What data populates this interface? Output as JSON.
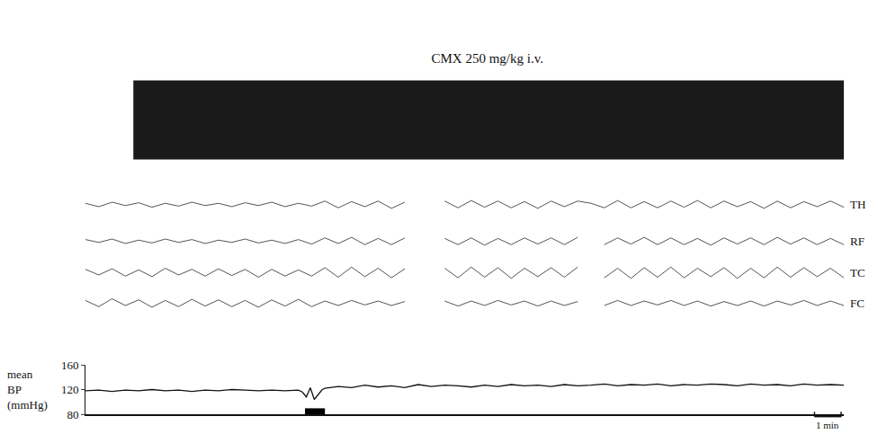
{
  "chart_data": {
    "type": "line",
    "title": "CMX 250 mg/kg i.v.",
    "xlim": [
      0,
      28.5
    ],
    "tick_labels": "y",
    "grid": false,
    "band": {
      "x": [
        1.8,
        28.5
      ],
      "upper": [
        1,
        1
      ],
      "lower": [
        -1,
        -1
      ],
      "ylim": [
        -1.1,
        1.1
      ],
      "color": "#1a1a1a"
    },
    "eeg": {
      "x": [
        0,
        0.5,
        1,
        1.5,
        2,
        2.5,
        3,
        3.5,
        4,
        4.5,
        5,
        5.5,
        6,
        6.5,
        7,
        7.5,
        8,
        8.5,
        9,
        9.5,
        10,
        10.5,
        11,
        11.5,
        12,
        12.5,
        13,
        13.5,
        14,
        14.5,
        15,
        15.5,
        16,
        16.5,
        17,
        17.5,
        18,
        18.5,
        19,
        19.5,
        20,
        20.5,
        21,
        21.5,
        22,
        22.5,
        23,
        23.5,
        24,
        24.5,
        25,
        25.5,
        26,
        26.5,
        27,
        27.5,
        28,
        28.5
      ],
      "ylim": [
        -1,
        1
      ],
      "series": [
        {
          "name": "TH",
          "color": "#555555",
          "values": [
            0.1,
            -0.2,
            0.2,
            -0.1,
            0.15,
            -0.25,
            0.1,
            -0.15,
            0.2,
            -0.1,
            0.1,
            -0.2,
            0.15,
            -0.1,
            0.2,
            -0.2,
            0.1,
            -0.15,
            0.3,
            -0.3,
            0.25,
            -0.2,
            0.3,
            -0.35,
            0.2,
            null,
            null,
            0.3,
            -0.3,
            0.35,
            -0.25,
            0.3,
            -0.3,
            0.25,
            -0.35,
            0.3,
            -0.2,
            0.3,
            0.1,
            -0.3,
            0.35,
            -0.3,
            0.25,
            -0.3,
            0.3,
            -0.25,
            0.35,
            -0.3,
            0.3,
            -0.2,
            0.25,
            -0.35,
            0.3,
            -0.3,
            0.25,
            -0.2,
            0.3,
            -0.25
          ]
        },
        {
          "name": "RF",
          "color": "#555555",
          "values": [
            0.15,
            -0.1,
            0.2,
            -0.2,
            0.1,
            -0.15,
            0.2,
            -0.1,
            0.15,
            -0.2,
            0.1,
            -0.1,
            0.2,
            -0.15,
            0.1,
            -0.2,
            0.15,
            -0.25,
            0.3,
            -0.2,
            0.35,
            -0.3,
            0.25,
            -0.3,
            0.3,
            null,
            null,
            0.25,
            -0.3,
            0.3,
            -0.35,
            0.25,
            -0.3,
            0.3,
            -0.25,
            0.3,
            -0.3,
            0.35,
            null,
            -0.3,
            0.3,
            -0.25,
            0.35,
            -0.3,
            0.3,
            -0.3,
            0.25,
            -0.35,
            0.3,
            -0.25,
            0.3,
            -0.3,
            0.35,
            -0.25,
            0.3,
            -0.3,
            0.25,
            -0.3
          ]
        },
        {
          "name": "TC",
          "color": "#555555",
          "values": [
            0.3,
            -0.2,
            0.35,
            -0.3,
            0.25,
            -0.35,
            0.4,
            -0.2,
            0.3,
            -0.3,
            0.35,
            -0.25,
            0.3,
            -0.4,
            0.3,
            -0.3,
            0.25,
            -0.3,
            0.45,
            -0.4,
            0.5,
            -0.35,
            0.4,
            -0.45,
            0.35,
            null,
            null,
            0.4,
            -0.45,
            0.5,
            -0.4,
            0.45,
            -0.5,
            0.4,
            -0.35,
            0.45,
            -0.4,
            0.5,
            null,
            -0.45,
            0.4,
            -0.5,
            0.45,
            -0.4,
            0.5,
            -0.45,
            0.4,
            -0.35,
            0.45,
            -0.5,
            0.4,
            -0.45,
            0.5,
            -0.4,
            0.45,
            -0.35,
            0.4,
            -0.45
          ]
        },
        {
          "name": "FC",
          "color": "#555555",
          "values": [
            0.25,
            -0.3,
            0.4,
            -0.2,
            0.3,
            -0.35,
            0.25,
            -0.3,
            0.35,
            -0.25,
            0.3,
            -0.3,
            0.25,
            -0.35,
            0.3,
            -0.25,
            0.35,
            -0.3,
            0.2,
            -0.2,
            0.25,
            -0.15,
            0.2,
            -0.2,
            0.15,
            null,
            null,
            0.2,
            -0.25,
            0.2,
            -0.2,
            0.25,
            -0.15,
            0.2,
            -0.25,
            0.2,
            -0.2,
            0.15,
            null,
            -0.2,
            0.25,
            -0.2,
            0.2,
            -0.15,
            0.25,
            -0.2,
            0.2,
            -0.25,
            0.15,
            -0.2,
            0.2,
            -0.25,
            0.2,
            -0.15,
            0.25,
            -0.2,
            0.2,
            -0.2
          ]
        }
      ]
    },
    "bp": {
      "ylabel": [
        "mean",
        "BP",
        "(mmHg)"
      ],
      "x": [
        0,
        0.5,
        1,
        1.5,
        2,
        2.5,
        3,
        3.5,
        4,
        4.5,
        5,
        5.5,
        6,
        6.5,
        7,
        7.5,
        8,
        8.15,
        8.3,
        8.45,
        8.6,
        8.75,
        8.9,
        9,
        9.5,
        10,
        10.5,
        11,
        11.5,
        12,
        12.5,
        13,
        13.5,
        14,
        14.5,
        15,
        15.5,
        16,
        16.5,
        17,
        17.5,
        18,
        18.5,
        19,
        19.5,
        20,
        20.5,
        21,
        21.5,
        22,
        22.5,
        23,
        23.5,
        24,
        24.5,
        25,
        25.5,
        26,
        26.5,
        27,
        27.5,
        28,
        28.5
      ],
      "values": [
        118,
        119,
        117,
        119,
        118,
        120,
        118,
        119,
        117,
        119,
        118,
        120,
        119,
        118,
        119,
        118,
        119,
        116,
        108,
        123,
        104,
        112,
        120,
        122,
        125,
        123,
        127,
        124,
        126,
        123,
        128,
        125,
        127,
        126,
        124,
        127,
        125,
        128,
        126,
        127,
        125,
        128,
        126,
        127,
        129,
        126,
        128,
        127,
        129,
        126,
        128,
        127,
        129,
        128,
        126,
        129,
        127,
        128,
        126,
        129,
        127,
        128,
        127
      ],
      "ylim": [
        80,
        160
      ],
      "yticks": [
        80,
        120,
        160
      ],
      "color": "#111111"
    },
    "injection": {
      "start": 8.25,
      "end": 9.0,
      "color": "#000000"
    },
    "scale_bar": {
      "start": 27.4,
      "length": 1,
      "label": "1 min"
    }
  }
}
